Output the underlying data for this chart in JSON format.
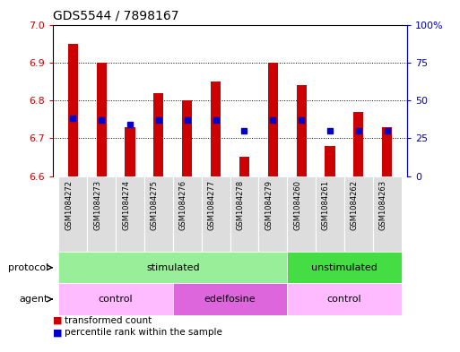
{
  "title": "GDS5544 / 7898167",
  "ylim": [
    6.6,
    7.0
  ],
  "yticks_left": [
    6.6,
    6.7,
    6.8,
    6.9,
    7.0
  ],
  "yticks_right": [
    0,
    25,
    50,
    75,
    100
  ],
  "yticks_right_labels": [
    "0",
    "25",
    "50",
    "75",
    "100%"
  ],
  "samples": [
    "GSM1084272",
    "GSM1084273",
    "GSM1084274",
    "GSM1084275",
    "GSM1084276",
    "GSM1084277",
    "GSM1084278",
    "GSM1084279",
    "GSM1084260",
    "GSM1084261",
    "GSM1084262",
    "GSM1084263"
  ],
  "bar_values": [
    6.95,
    6.9,
    6.73,
    6.82,
    6.8,
    6.85,
    6.65,
    6.9,
    6.84,
    6.68,
    6.77,
    6.73
  ],
  "percentile_values": [
    38,
    37,
    34,
    37,
    37,
    37,
    30,
    37,
    37,
    30,
    30,
    30
  ],
  "bar_color": "#cc0000",
  "percentile_color": "#0000cc",
  "baseline": 6.6,
  "protocol_groups": [
    {
      "label": "stimulated",
      "start": 0,
      "end": 8,
      "color": "#99ee99"
    },
    {
      "label": "unstimulated",
      "start": 8,
      "end": 12,
      "color": "#44dd44"
    }
  ],
  "agent_groups": [
    {
      "label": "control",
      "start": 0,
      "end": 4,
      "color": "#ffbbff"
    },
    {
      "label": "edelfosine",
      "start": 4,
      "end": 8,
      "color": "#dd66dd"
    },
    {
      "label": "control",
      "start": 8,
      "end": 12,
      "color": "#ffbbff"
    }
  ],
  "legend_items": [
    {
      "label": "transformed count",
      "color": "#cc0000"
    },
    {
      "label": "percentile rank within the sample",
      "color": "#0000cc"
    }
  ],
  "protocol_label": "protocol",
  "agent_label": "agent",
  "bar_width": 0.35,
  "left_axis_color": "#cc0000",
  "right_axis_color": "#0000bb",
  "title_fontsize": 10,
  "tick_fontsize": 8,
  "xtick_area_color": "#cccccc",
  "xtick_cell_color": "#dddddd"
}
